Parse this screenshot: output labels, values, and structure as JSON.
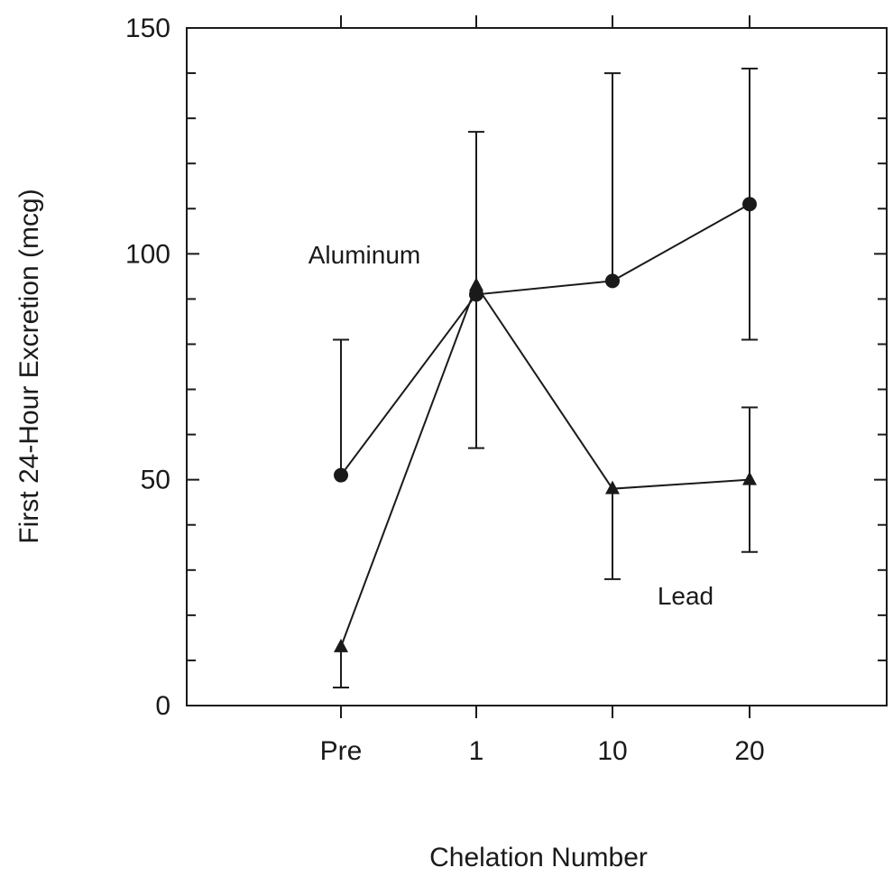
{
  "chart_data": {
    "type": "line",
    "categories": [
      "Pre",
      "1",
      "10",
      "20"
    ],
    "xlabel": "Chelation Number",
    "ylabel": "First 24-Hour Excretion (mcg)",
    "ylim": [
      0,
      150
    ],
    "yticks": [
      0,
      50,
      100,
      150
    ],
    "grid": false,
    "series": [
      {
        "name": "Aluminum",
        "marker": "circle",
        "values": [
          51,
          91,
          94,
          111
        ],
        "err_upper": [
          81,
          127,
          140,
          141
        ],
        "err_lower": [
          51,
          57,
          94,
          81
        ]
      },
      {
        "name": "Lead",
        "marker": "triangle",
        "values": [
          13,
          93,
          48,
          50
        ],
        "err_upper": [
          13,
          93,
          48,
          66
        ],
        "err_lower": [
          4,
          93,
          28,
          34
        ]
      }
    ]
  }
}
